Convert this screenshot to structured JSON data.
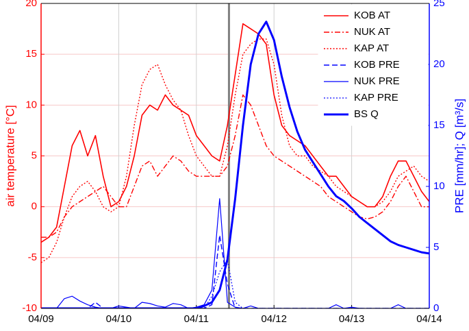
{
  "chart_data": {
    "type": "line",
    "x": [
      0,
      0.1,
      0.2,
      0.3,
      0.4,
      0.5,
      0.6,
      0.7,
      0.8,
      0.9,
      1,
      1.1,
      1.2,
      1.3,
      1.4,
      1.5,
      1.6,
      1.7,
      1.8,
      1.9,
      2,
      2.1,
      2.2,
      2.3,
      2.4,
      2.5,
      2.6,
      2.7,
      2.8,
      2.9,
      3,
      3.1,
      3.2,
      3.3,
      3.4,
      3.5,
      3.6,
      3.7,
      3.8,
      3.9,
      4,
      4.1,
      4.2,
      4.3,
      4.4,
      4.5,
      4.6,
      4.7,
      4.8,
      4.9,
      5
    ],
    "series": [
      {
        "name": "KOB AT",
        "color": "#ff0000",
        "style": "solid",
        "width": 1.6,
        "values": [
          -3.5,
          -3,
          -2,
          2,
          6,
          7.5,
          5,
          7,
          3,
          0,
          0.5,
          2,
          5,
          9,
          10,
          9.5,
          11,
          10,
          9.5,
          9,
          7,
          6,
          5,
          4.5,
          8,
          13,
          18,
          17.5,
          17,
          16,
          11,
          8,
          7,
          6.5,
          6,
          5,
          4,
          3,
          3,
          2,
          1,
          0.5,
          0,
          0,
          1,
          3,
          4.5,
          4.5,
          3,
          1.5,
          0.5
        ]
      },
      {
        "name": "NUK AT",
        "color": "#ff0000",
        "style": "dashdot",
        "width": 1.4,
        "values": [
          -3,
          -3,
          -2.5,
          -1,
          0,
          0.5,
          1,
          1.5,
          2,
          1,
          0,
          0,
          2,
          4,
          4.5,
          3,
          4,
          5,
          4.5,
          3.5,
          3,
          3,
          3,
          3,
          4,
          7,
          11,
          10,
          8,
          6,
          5,
          4.5,
          4,
          3.5,
          3,
          2.5,
          2,
          1,
          0.5,
          0,
          -0.5,
          -1,
          -1.2,
          -1,
          -0.5,
          0.5,
          2,
          3,
          1.5,
          0,
          0
        ]
      },
      {
        "name": "KAP AT",
        "color": "#ff0000",
        "style": "dotted",
        "width": 1.4,
        "values": [
          -5.5,
          -5,
          -3.5,
          -1,
          1,
          2,
          2.5,
          1.5,
          0,
          -0.5,
          0,
          3,
          8,
          12,
          13.5,
          14,
          12,
          10.5,
          9.5,
          7,
          5,
          4,
          3,
          3,
          6,
          11,
          15,
          16,
          16.5,
          16.5,
          14,
          9,
          6,
          5,
          5,
          4,
          3.5,
          3,
          2,
          1.5,
          1,
          0.5,
          0,
          0,
          0.5,
          1.5,
          3,
          3.5,
          4,
          3,
          2.5
        ]
      },
      {
        "name": "KOB PRE",
        "color": "#0000ff",
        "style": "dashed",
        "width": 1.4,
        "axis": "y2",
        "values": [
          0,
          0,
          0,
          0,
          0,
          0,
          0,
          0.5,
          0,
          0,
          0,
          0,
          0,
          0,
          0,
          0,
          0,
          0,
          0,
          0,
          0,
          0,
          0.3,
          6,
          2,
          0,
          0,
          0,
          0,
          0,
          0,
          0,
          0,
          0,
          0,
          0,
          0,
          0,
          0,
          0,
          0,
          0,
          0,
          0,
          0,
          0,
          0,
          0,
          0,
          0,
          0
        ]
      },
      {
        "name": "NUK PRE",
        "color": "#0000ff",
        "style": "solid",
        "width": 1.2,
        "axis": "y2",
        "values": [
          0,
          0,
          0,
          0.8,
          1,
          0.6,
          0.3,
          0.1,
          0,
          0,
          0.2,
          0.1,
          0,
          0.5,
          0.4,
          0.2,
          0.1,
          0.4,
          0.3,
          0,
          0.1,
          0.3,
          1.5,
          9,
          0.5,
          0.1,
          0,
          0.2,
          0,
          0,
          0,
          0,
          0,
          0,
          0,
          0,
          0,
          0,
          0.3,
          0,
          0.1,
          0,
          0,
          0,
          0,
          0,
          0.3,
          0,
          0,
          0,
          0
        ]
      },
      {
        "name": "KAP PRE",
        "color": "#0000ff",
        "style": "dotted",
        "width": 1.2,
        "axis": "y2",
        "values": [
          0,
          0,
          0,
          0,
          0,
          0,
          0,
          0,
          0,
          0,
          0,
          0,
          0,
          0,
          0,
          0,
          0,
          0,
          0,
          0,
          0,
          0,
          1,
          3,
          4,
          0.5,
          0,
          0,
          0,
          0,
          0,
          0,
          0,
          0,
          0,
          0,
          0,
          0,
          0,
          0,
          0,
          0,
          0,
          0,
          0,
          0,
          0,
          0,
          0,
          0,
          0
        ]
      },
      {
        "name": "BS Q",
        "color": "#0000ff",
        "style": "solid",
        "width": 3,
        "axis": "y2",
        "values": [
          0,
          0,
          0,
          0,
          0,
          0,
          0,
          0,
          0,
          0,
          0,
          0,
          0,
          0,
          0,
          0,
          0,
          0,
          0,
          0,
          0,
          0.2,
          0.5,
          1.5,
          4,
          9,
          15,
          20,
          22.5,
          23.5,
          22,
          19,
          16.5,
          14.5,
          13,
          12,
          11,
          10,
          9.2,
          8.8,
          8.2,
          7.5,
          7,
          6.5,
          6,
          5.5,
          5.2,
          5,
          4.8,
          4.6,
          4.5
        ]
      }
    ],
    "xlim": [
      0,
      5
    ],
    "xticks": [
      {
        "value": 0,
        "label": "04/09"
      },
      {
        "value": 1,
        "label": "04/10"
      },
      {
        "value": 2,
        "label": "04/11"
      },
      {
        "value": 3,
        "label": "04/12"
      },
      {
        "value": 4,
        "label": "04/13"
      },
      {
        "value": 5,
        "label": "04/14"
      }
    ],
    "ylim": [
      -10,
      20
    ],
    "yticks": [
      -10,
      -5,
      0,
      5,
      10,
      15,
      20
    ],
    "y2lim": [
      0,
      25
    ],
    "y2ticks": [
      0,
      5,
      10,
      15,
      20,
      25
    ],
    "ylabel": "air temperature [°C]",
    "y2label": "PRE [mm/hr]; Q [m³/s]",
    "ycolor": "#ff0000",
    "y2color": "#0000ff",
    "vline": 2.42,
    "vline_color": "#808080",
    "grid": true,
    "legend": "upper right"
  }
}
